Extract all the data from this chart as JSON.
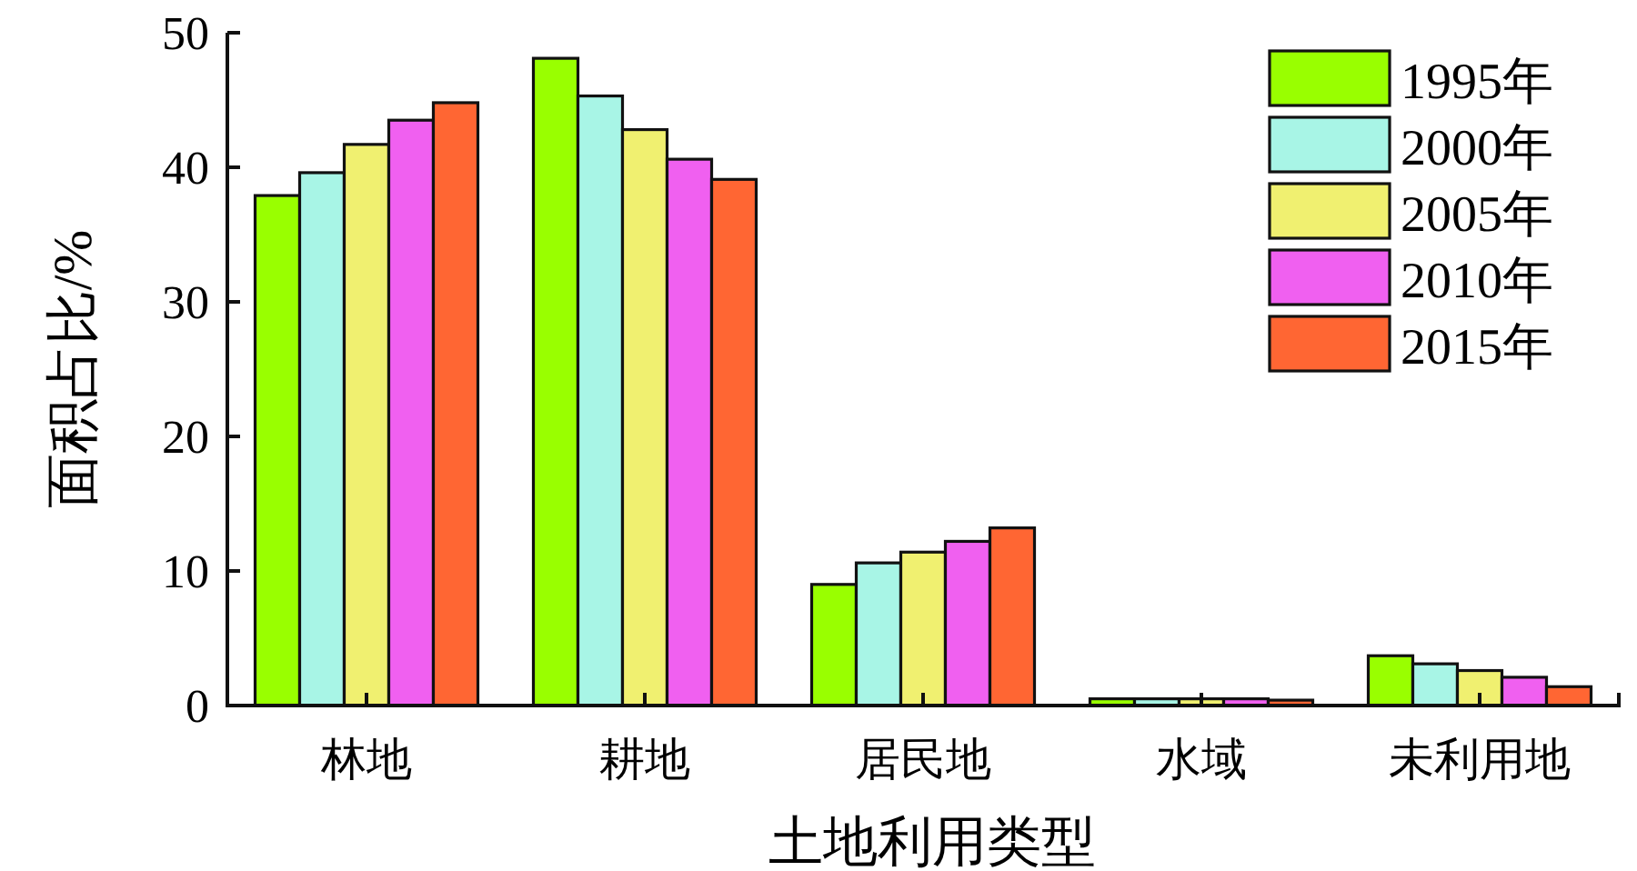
{
  "chart_data": {
    "type": "bar",
    "xlabel": "土地利用类型",
    "ylabel": "面积占比/%",
    "categories": [
      "林地",
      "耕地",
      "居民地",
      "水域",
      "未利用地"
    ],
    "series": [
      {
        "name": "1995年",
        "color": "#99ff00",
        "values": [
          37.9,
          48.1,
          9.0,
          0.5,
          3.7
        ]
      },
      {
        "name": "2000年",
        "color": "#a8f5e6",
        "values": [
          39.6,
          45.3,
          10.6,
          0.5,
          3.1
        ]
      },
      {
        "name": "2005年",
        "color": "#f0f070",
        "values": [
          41.7,
          42.8,
          11.4,
          0.5,
          2.6
        ]
      },
      {
        "name": "2010年",
        "color": "#f060f0",
        "values": [
          43.5,
          40.6,
          12.2,
          0.5,
          2.1
        ]
      },
      {
        "name": "2015年",
        "color": "#ff6633",
        "values": [
          44.8,
          39.1,
          13.2,
          0.4,
          1.4
        ]
      }
    ],
    "ylim": [
      0,
      50
    ],
    "yticks": [
      0,
      10,
      20,
      30,
      40,
      50
    ],
    "legend": "top right"
  }
}
